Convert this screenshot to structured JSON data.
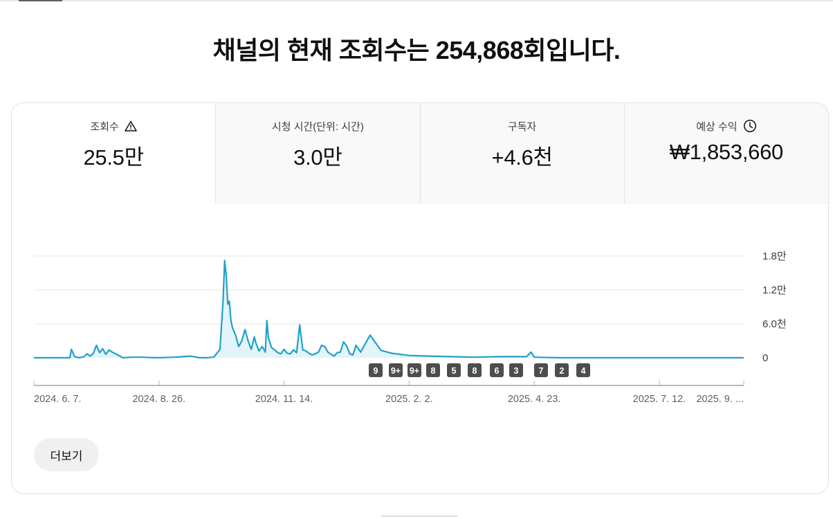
{
  "headline": "채널의 현재 조회수는 254,868회입니다.",
  "metrics": [
    {
      "label": "조회수",
      "value": "25.5만",
      "icon": "warning-icon",
      "selected": true
    },
    {
      "label": "시청 시간(단위: 시간)",
      "value": "3.0만",
      "icon": "",
      "selected": false
    },
    {
      "label": "구독자",
      "value": "+4.6천",
      "icon": "",
      "selected": false
    },
    {
      "label": "예상 수익",
      "value": "₩1,853,660",
      "icon": "clock-icon",
      "selected": false
    }
  ],
  "more_button": "더보기",
  "colors": {
    "line": "#1fa0c9",
    "fill": "#e3f4fa",
    "marker": "#4d4d4d",
    "grid": "#e5e5e5"
  },
  "chart_data": {
    "type": "area",
    "y_tick_labels": [
      "1.8만",
      "1.2만",
      "6.0천",
      "0"
    ],
    "y_ticks": [
      18000,
      12000,
      6000,
      0
    ],
    "ylim": [
      0,
      18000
    ],
    "x_tick_labels": [
      "2024. 6. 7.",
      "2024. 8. 26.",
      "2024. 11. 14.",
      "2025. 2. 2.",
      "2025. 4. 23.",
      "2025. 7. 12.",
      "2025. 9. ..."
    ],
    "x_tick_dates": [
      "2024-06-07",
      "2024-08-26",
      "2024-11-14",
      "2025-02-02",
      "2025-04-23",
      "2025-07-12",
      "2025-09-04"
    ],
    "x_range": [
      "2024-06-07",
      "2025-09-04"
    ],
    "grid": true,
    "series": [
      {
        "x": [
          "2024-06-07",
          "2024-06-20",
          "2024-06-30",
          "2024-07-01",
          "2024-07-03",
          "2024-07-06",
          "2024-07-09",
          "2024-07-11",
          "2024-07-13",
          "2024-07-15",
          "2024-07-17",
          "2024-07-19",
          "2024-07-21",
          "2024-07-23",
          "2024-07-25",
          "2024-07-27",
          "2024-07-30",
          "2024-08-03",
          "2024-08-08",
          "2024-08-15",
          "2024-08-25",
          "2024-09-05",
          "2024-09-15",
          "2024-09-21",
          "2024-09-25",
          "2024-09-30",
          "2024-10-04",
          "2024-10-06",
          "2024-10-07",
          "2024-10-08",
          "2024-10-09",
          "2024-10-10",
          "2024-10-11",
          "2024-10-12",
          "2024-10-14",
          "2024-10-16",
          "2024-10-18",
          "2024-10-20",
          "2024-10-22",
          "2024-10-24",
          "2024-10-26",
          "2024-10-27",
          "2024-10-29",
          "2024-10-31",
          "2024-11-02",
          "2024-11-03",
          "2024-11-04",
          "2024-11-06",
          "2024-11-08",
          "2024-11-10",
          "2024-11-12",
          "2024-11-14",
          "2024-11-16",
          "2024-11-18",
          "2024-11-20",
          "2024-11-22",
          "2024-11-24",
          "2024-11-26",
          "2024-11-28",
          "2024-11-30",
          "2024-12-02",
          "2024-12-04",
          "2024-12-06",
          "2024-12-08",
          "2024-12-10",
          "2024-12-12",
          "2024-12-14",
          "2024-12-16",
          "2024-12-18",
          "2024-12-20",
          "2024-12-22",
          "2024-12-24",
          "2024-12-26",
          "2024-12-28",
          "2024-12-30",
          "2025-01-02",
          "2025-01-08",
          "2025-01-15",
          "2025-01-22",
          "2025-02-02",
          "2025-02-15",
          "2025-03-01",
          "2025-03-15",
          "2025-04-01",
          "2025-04-10",
          "2025-04-18",
          "2025-04-21",
          "2025-04-23",
          "2025-05-10",
          "2025-07-12",
          "2025-09-04"
        ],
        "y": [
          0,
          0,
          0,
          1500,
          200,
          0,
          200,
          700,
          300,
          800,
          2200,
          900,
          1600,
          600,
          1400,
          1000,
          600,
          0,
          100,
          100,
          0,
          100,
          300,
          0,
          0,
          100,
          1500,
          10000,
          17200,
          14500,
          9500,
          10000,
          6700,
          5300,
          4000,
          2000,
          3000,
          5000,
          3000,
          1500,
          3700,
          2600,
          1200,
          2000,
          1000,
          6600,
          3500,
          1800,
          1400,
          900,
          700,
          1500,
          800,
          700,
          1400,
          900,
          5800,
          1400,
          1200,
          800,
          500,
          700,
          1000,
          2200,
          2000,
          1000,
          600,
          300,
          900,
          1000,
          2800,
          2100,
          700,
          500,
          2200,
          1000,
          4000,
          1300,
          800,
          400,
          300,
          200,
          100,
          200,
          200,
          200,
          1000,
          100,
          0,
          0,
          0
        ]
      }
    ],
    "annotations": [
      "9",
      "9+",
      "9+",
      "8",
      "5",
      "8",
      "6",
      "3",
      "7",
      "2",
      "4"
    ]
  }
}
